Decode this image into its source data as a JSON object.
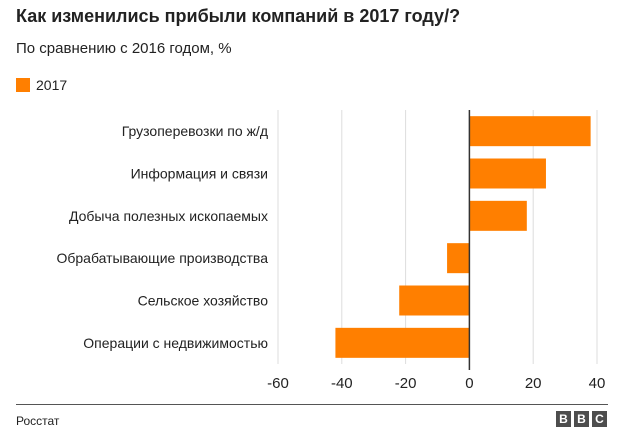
{
  "title": "Как изменились прибыли компаний в 2017 году/?",
  "subtitle": "По сравнению с 2016 годом, %",
  "source": "Росстат",
  "logo": [
    "B",
    "B",
    "C"
  ],
  "colors": {
    "bar": "#ff7f00",
    "grid": "#dddddd",
    "axis": "#333333",
    "text": "#222222"
  },
  "chart_data": {
    "type": "bar",
    "orientation": "horizontal",
    "categories": [
      "Грузоперевозки по ж/д",
      "Информация и связи",
      "Добыча полезных ископаемых",
      "Обрабатывающие производства",
      "Сельское хозяйство",
      "Операции с недвижимостью"
    ],
    "series": [
      {
        "name": "2017",
        "values": [
          38,
          24,
          18,
          -7,
          -22,
          -42
        ]
      }
    ],
    "xlim": [
      -60,
      40
    ],
    "xticks": [
      "-60",
      "-40",
      "-20",
      "0",
      "20",
      "40"
    ],
    "xlabel": "",
    "ylabel": "",
    "grid": true,
    "legend": "top-left"
  }
}
